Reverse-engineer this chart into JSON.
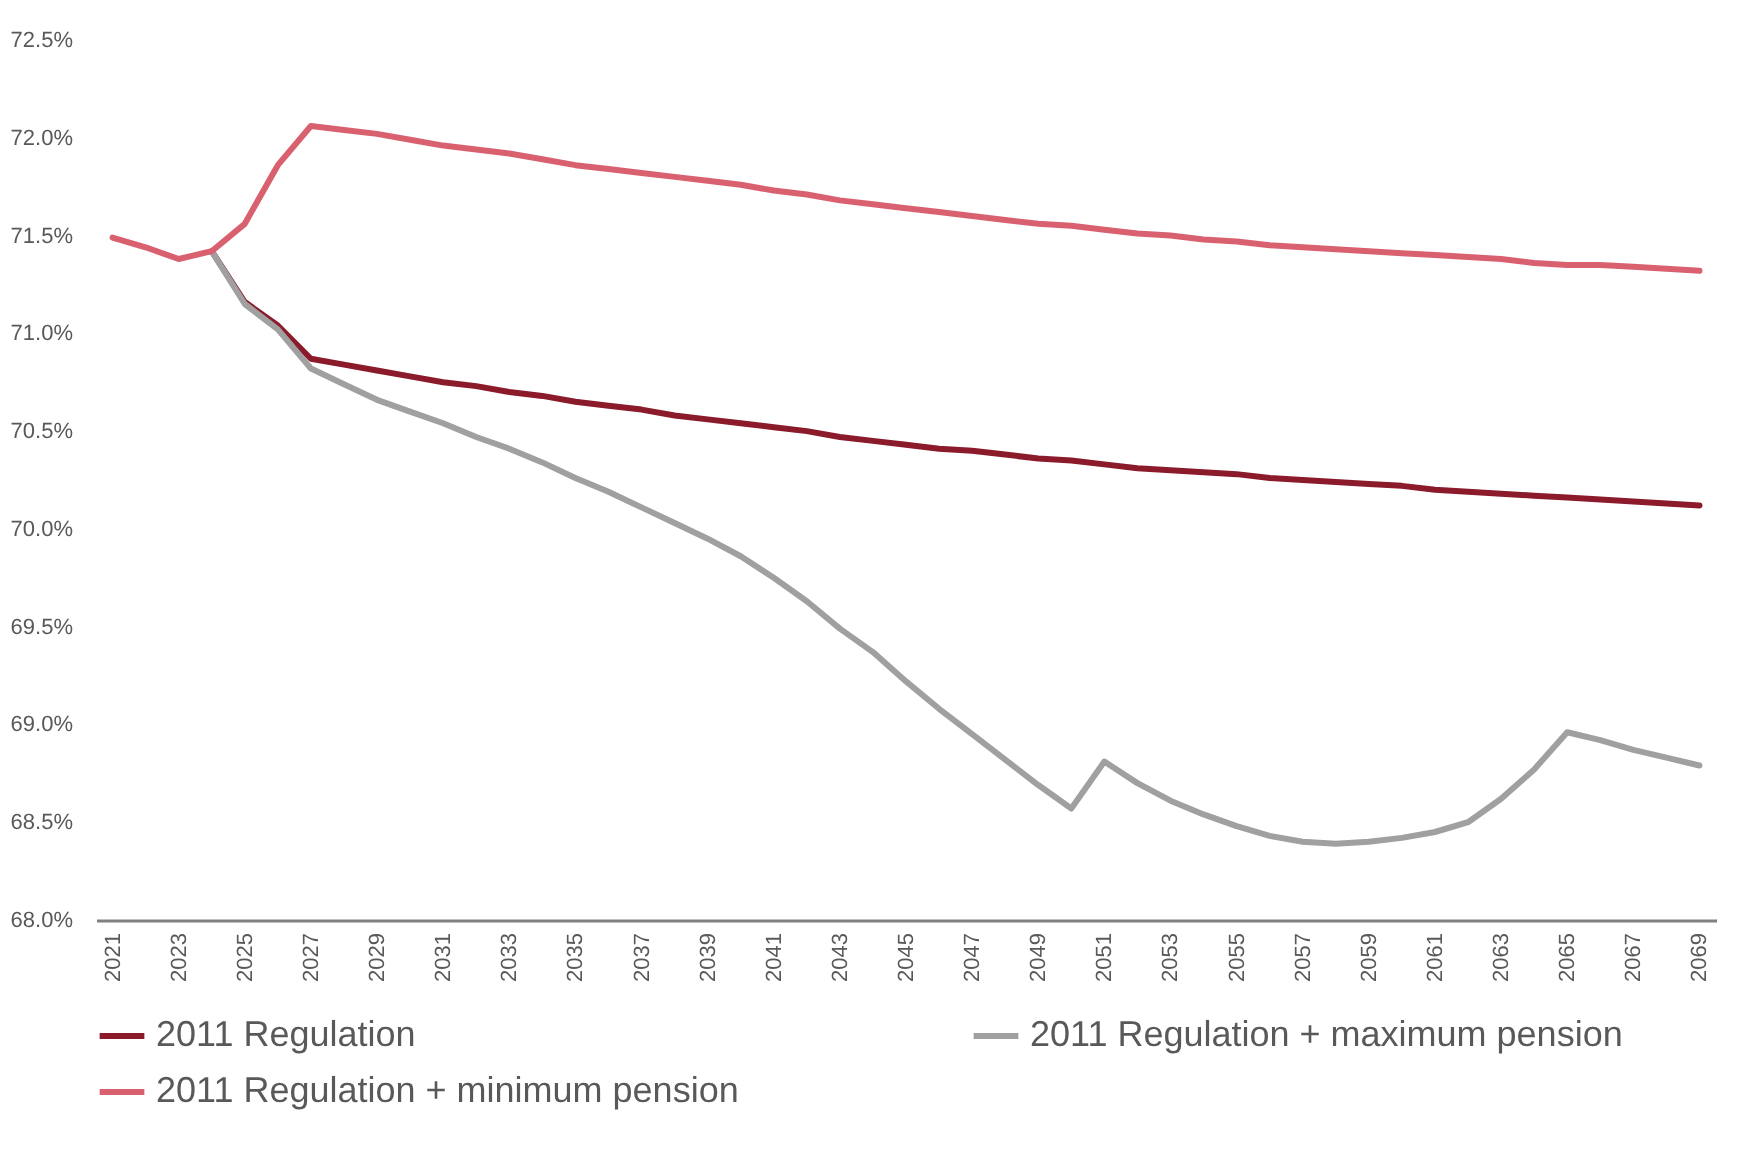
{
  "chart_data": {
    "type": "line",
    "categories": [
      "2021",
      null,
      "2023",
      null,
      "2025",
      null,
      "2027",
      null,
      "2029",
      null,
      "2031",
      null,
      "2033",
      null,
      "2035",
      null,
      "2037",
      null,
      "2039",
      null,
      "2041",
      null,
      "2043",
      null,
      "2045",
      null,
      "2047",
      null,
      "2049",
      null,
      "2051",
      null,
      "2053",
      null,
      "2055",
      null,
      "2057",
      null,
      "2059",
      null,
      "2061",
      null,
      "2063",
      null,
      "2065",
      null,
      "2067",
      null,
      "2069"
    ],
    "series": [
      {
        "name": "2011 Regulation",
        "color": "#8b1a2b",
        "values": [
          null,
          null,
          null,
          71.42,
          71.16,
          71.04,
          70.87,
          70.84,
          70.81,
          70.78,
          70.75,
          70.73,
          70.7,
          70.68,
          70.65,
          70.63,
          70.61,
          70.58,
          70.56,
          70.54,
          70.52,
          70.5,
          70.47,
          70.45,
          70.43,
          70.41,
          70.4,
          70.38,
          70.36,
          70.35,
          70.33,
          70.31,
          70.3,
          70.29,
          70.28,
          70.26,
          70.25,
          70.24,
          70.23,
          70.22,
          70.2,
          70.19,
          70.18,
          70.17,
          70.16,
          70.15,
          70.14,
          70.13,
          70.12
        ]
      },
      {
        "name": "2011 Regulation + maximum pension",
        "color": "#a0a0a0",
        "values": [
          null,
          null,
          null,
          71.42,
          71.15,
          71.02,
          70.82,
          70.74,
          70.66,
          70.6,
          70.54,
          70.47,
          70.41,
          70.34,
          70.26,
          70.19,
          70.11,
          70.03,
          69.95,
          69.86,
          69.75,
          69.63,
          69.49,
          69.37,
          69.22,
          69.08,
          68.95,
          68.82,
          68.69,
          68.57,
          68.81,
          68.7,
          68.61,
          68.54,
          68.48,
          68.43,
          68.4,
          68.39,
          68.4,
          68.42,
          68.45,
          68.5,
          68.62,
          68.77,
          68.96,
          68.92,
          68.87,
          68.83,
          68.79
        ]
      },
      {
        "name": "2011 Regulation + minimum pension",
        "color": "#d9616f",
        "values": [
          71.49,
          71.44,
          71.38,
          71.42,
          71.56,
          71.86,
          72.06,
          72.04,
          72.02,
          71.99,
          71.96,
          71.94,
          71.92,
          71.89,
          71.86,
          71.84,
          71.82,
          71.8,
          71.78,
          71.76,
          71.73,
          71.71,
          71.68,
          71.66,
          71.64,
          71.62,
          71.6,
          71.58,
          71.56,
          71.55,
          71.53,
          71.51,
          71.5,
          71.48,
          71.47,
          71.45,
          71.44,
          71.43,
          71.42,
          71.41,
          71.4,
          71.39,
          71.38,
          71.36,
          71.35,
          71.35,
          71.34,
          71.33,
          71.32
        ]
      }
    ],
    "ylim": [
      68.0,
      72.5
    ],
    "yticks": [
      {
        "value": 68.0,
        "label": "68.0%"
      },
      {
        "value": 68.5,
        "label": "68.5%"
      },
      {
        "value": 69.0,
        "label": "69.0%"
      },
      {
        "value": 69.5,
        "label": "69.5%"
      },
      {
        "value": 70.0,
        "label": "70.0%"
      },
      {
        "value": 70.5,
        "label": "70.5%"
      },
      {
        "value": 71.0,
        "label": "71.0%"
      },
      {
        "value": 71.5,
        "label": "71.5%"
      },
      {
        "value": 72.0,
        "label": "72.0%"
      },
      {
        "value": 72.5,
        "label": "72.5%"
      }
    ],
    "grid": false,
    "legend": "bottom",
    "marker": "none",
    "line_style": "solid"
  }
}
